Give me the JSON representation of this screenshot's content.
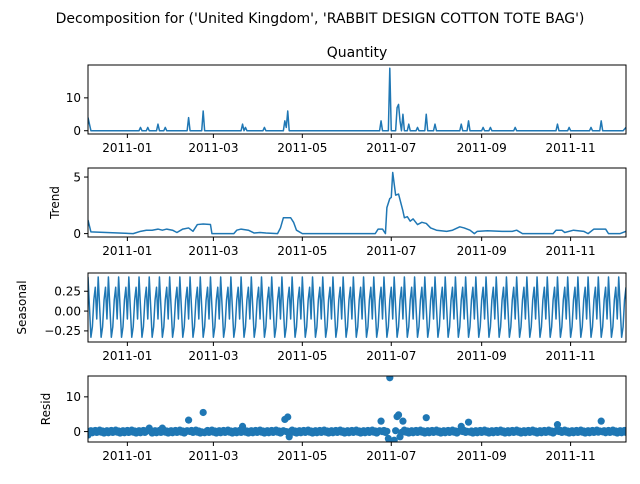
{
  "chart_data": {
    "type": "line",
    "suptitle": "Decomposition for ('United Kingdom', 'RABBIT  DESIGN  COTTON TOTE BAG')",
    "x_tick_labels": [
      "2011-01",
      "2011-03",
      "2011-05",
      "2011-07",
      "2011-09",
      "2011-11"
    ],
    "x_tick_dates": [
      "2011-01-01",
      "2011-03-01",
      "2011-05-01",
      "2011-07-01",
      "2011-09-01",
      "2011-11-01"
    ],
    "x_range": [
      "2010-12-05",
      "2011-12-09"
    ],
    "panels": [
      {
        "name": "observed",
        "title": "Quantity",
        "ylabel": "",
        "kind": "line",
        "ylim": [
          -1,
          20
        ],
        "yticks": [
          0,
          10
        ],
        "points": [
          [
            "2010-12-05",
            4
          ],
          [
            "2010-12-07",
            0
          ],
          [
            "2011-01-09",
            0
          ],
          [
            "2011-01-10",
            1
          ],
          [
            "2011-01-11",
            0
          ],
          [
            "2011-01-14",
            0
          ],
          [
            "2011-01-15",
            1
          ],
          [
            "2011-01-16",
            0
          ],
          [
            "2011-01-21",
            0
          ],
          [
            "2011-01-22",
            2
          ],
          [
            "2011-01-23",
            0
          ],
          [
            "2011-01-26",
            0
          ],
          [
            "2011-01-27",
            1
          ],
          [
            "2011-01-28",
            0
          ],
          [
            "2011-02-11",
            0
          ],
          [
            "2011-02-12",
            4
          ],
          [
            "2011-02-13",
            0
          ],
          [
            "2011-02-21",
            0
          ],
          [
            "2011-02-22",
            6
          ],
          [
            "2011-02-23",
            0
          ],
          [
            "2011-03-20",
            0
          ],
          [
            "2011-03-21",
            2
          ],
          [
            "2011-03-22",
            0
          ],
          [
            "2011-03-23",
            1
          ],
          [
            "2011-03-24",
            0
          ],
          [
            "2011-04-04",
            0
          ],
          [
            "2011-04-05",
            1
          ],
          [
            "2011-04-06",
            0
          ],
          [
            "2011-04-18",
            0
          ],
          [
            "2011-04-19",
            3
          ],
          [
            "2011-04-20",
            1
          ],
          [
            "2011-04-21",
            6
          ],
          [
            "2011-04-22",
            0
          ],
          [
            "2011-06-23",
            0
          ],
          [
            "2011-06-24",
            3
          ],
          [
            "2011-06-25",
            0
          ],
          [
            "2011-06-29",
            0
          ],
          [
            "2011-06-30",
            19
          ],
          [
            "2011-07-01",
            0
          ],
          [
            "2011-07-04",
            0
          ],
          [
            "2011-07-05",
            7
          ],
          [
            "2011-07-06",
            8
          ],
          [
            "2011-07-07",
            3
          ],
          [
            "2011-07-08",
            0
          ],
          [
            "2011-07-09",
            5
          ],
          [
            "2011-07-10",
            0
          ],
          [
            "2011-07-12",
            0
          ],
          [
            "2011-07-13",
            2
          ],
          [
            "2011-07-14",
            0
          ],
          [
            "2011-07-18",
            0
          ],
          [
            "2011-07-19",
            1
          ],
          [
            "2011-07-20",
            0
          ],
          [
            "2011-07-24",
            0
          ],
          [
            "2011-07-25",
            5
          ],
          [
            "2011-07-26",
            0
          ],
          [
            "2011-07-30",
            0
          ],
          [
            "2011-07-31",
            2
          ],
          [
            "2011-08-01",
            0
          ],
          [
            "2011-08-17",
            0
          ],
          [
            "2011-08-18",
            2
          ],
          [
            "2011-08-19",
            0
          ],
          [
            "2011-08-22",
            0
          ],
          [
            "2011-08-23",
            3
          ],
          [
            "2011-08-24",
            0
          ],
          [
            "2011-09-01",
            0
          ],
          [
            "2011-09-02",
            1
          ],
          [
            "2011-09-03",
            0
          ],
          [
            "2011-09-06",
            0
          ],
          [
            "2011-09-07",
            1
          ],
          [
            "2011-09-08",
            0
          ],
          [
            "2011-09-23",
            0
          ],
          [
            "2011-09-24",
            1
          ],
          [
            "2011-09-25",
            0
          ],
          [
            "2011-10-22",
            0
          ],
          [
            "2011-10-23",
            2
          ],
          [
            "2011-10-24",
            0
          ],
          [
            "2011-10-30",
            0
          ],
          [
            "2011-10-31",
            1
          ],
          [
            "2011-11-01",
            0
          ],
          [
            "2011-11-14",
            0
          ],
          [
            "2011-11-15",
            1
          ],
          [
            "2011-11-16",
            0
          ],
          [
            "2011-11-21",
            0
          ],
          [
            "2011-11-22",
            3
          ],
          [
            "2011-11-23",
            0
          ],
          [
            "2011-12-07",
            0
          ],
          [
            "2011-12-09",
            1
          ]
        ]
      },
      {
        "name": "trend",
        "title": "",
        "ylabel": "Trend",
        "kind": "line",
        "ylim": [
          -0.3,
          5.8
        ],
        "yticks": [
          0,
          5
        ],
        "points": [
          [
            "2010-12-05",
            1.2
          ],
          [
            "2010-12-07",
            0.15
          ],
          [
            "2011-01-05",
            0.0
          ],
          [
            "2011-01-10",
            0.2
          ],
          [
            "2011-01-14",
            0.3
          ],
          [
            "2011-01-18",
            0.3
          ],
          [
            "2011-01-22",
            0.4
          ],
          [
            "2011-01-25",
            0.3
          ],
          [
            "2011-01-28",
            0.4
          ],
          [
            "2011-02-01",
            0.3
          ],
          [
            "2011-02-04",
            0.1
          ],
          [
            "2011-02-08",
            0.4
          ],
          [
            "2011-02-12",
            0.5
          ],
          [
            "2011-02-15",
            0.2
          ],
          [
            "2011-02-18",
            0.8
          ],
          [
            "2011-02-22",
            0.85
          ],
          [
            "2011-02-27",
            0.8
          ],
          [
            "2011-02-28",
            0.0
          ],
          [
            "2011-03-15",
            0.0
          ],
          [
            "2011-03-17",
            0.3
          ],
          [
            "2011-03-20",
            0.4
          ],
          [
            "2011-03-25",
            0.3
          ],
          [
            "2011-03-29",
            0.05
          ],
          [
            "2011-04-02",
            0.1
          ],
          [
            "2011-04-06",
            0.05
          ],
          [
            "2011-04-14",
            0.0
          ],
          [
            "2011-04-16",
            0.5
          ],
          [
            "2011-04-18",
            1.4
          ],
          [
            "2011-04-23",
            1.4
          ],
          [
            "2011-04-25",
            1.0
          ],
          [
            "2011-04-27",
            0.3
          ],
          [
            "2011-05-01",
            0.0
          ],
          [
            "2011-06-20",
            0.0
          ],
          [
            "2011-06-22",
            0.4
          ],
          [
            "2011-06-25",
            0.4
          ],
          [
            "2011-06-27",
            0.0
          ],
          [
            "2011-06-28",
            2.3
          ],
          [
            "2011-06-30",
            3.1
          ],
          [
            "2011-07-01",
            3.2
          ],
          [
            "2011-07-02",
            5.4
          ],
          [
            "2011-07-04",
            3.4
          ],
          [
            "2011-07-06",
            3.5
          ],
          [
            "2011-07-08",
            2.5
          ],
          [
            "2011-07-09",
            2.0
          ],
          [
            "2011-07-10",
            1.4
          ],
          [
            "2011-07-12",
            1.5
          ],
          [
            "2011-07-14",
            1.1
          ],
          [
            "2011-07-16",
            1.3
          ],
          [
            "2011-07-19",
            0.8
          ],
          [
            "2011-07-22",
            1.0
          ],
          [
            "2011-07-25",
            0.9
          ],
          [
            "2011-07-28",
            0.5
          ],
          [
            "2011-08-01",
            0.3
          ],
          [
            "2011-08-08",
            0.2
          ],
          [
            "2011-08-12",
            0.3
          ],
          [
            "2011-08-17",
            0.6
          ],
          [
            "2011-08-20",
            0.5
          ],
          [
            "2011-08-24",
            0.3
          ],
          [
            "2011-08-27",
            0.0
          ],
          [
            "2011-08-29",
            0.2
          ],
          [
            "2011-09-05",
            0.25
          ],
          [
            "2011-09-15",
            0.2
          ],
          [
            "2011-09-22",
            0.2
          ],
          [
            "2011-09-25",
            0.3
          ],
          [
            "2011-09-29",
            0.0
          ],
          [
            "2011-10-20",
            0.0
          ],
          [
            "2011-10-22",
            0.3
          ],
          [
            "2011-10-26",
            0.3
          ],
          [
            "2011-10-28",
            0.1
          ],
          [
            "2011-11-03",
            0.3
          ],
          [
            "2011-11-10",
            0.2
          ],
          [
            "2011-11-13",
            0.0
          ],
          [
            "2011-11-17",
            0.4
          ],
          [
            "2011-11-25",
            0.4
          ],
          [
            "2011-11-27",
            0.0
          ],
          [
            "2011-12-05",
            0.0
          ],
          [
            "2011-12-09",
            0.2
          ]
        ]
      },
      {
        "name": "seasonal",
        "title": "",
        "ylabel": "Seasonal",
        "kind": "seasonal",
        "ylim": [
          -0.39,
          0.48
        ],
        "yticks": [
          -0.25,
          0.0,
          0.25
        ],
        "ytick_labels": [
          "−0.25",
          "0.00",
          "0.25"
        ],
        "period_days": 7,
        "cycle_values": [
          0.43,
          0.05,
          -0.33,
          -0.2,
          0.14,
          0.3,
          -0.1
        ]
      },
      {
        "name": "resid",
        "title": "",
        "ylabel": "Resid",
        "kind": "scatter",
        "ylim": [
          -3,
          16
        ],
        "yticks": [
          0,
          10
        ],
        "outliers": [
          [
            "2010-12-05",
            -1
          ],
          [
            "2011-01-16",
            1
          ],
          [
            "2011-01-25",
            1
          ],
          [
            "2011-02-12",
            3.3
          ],
          [
            "2011-02-22",
            5.5
          ],
          [
            "2011-03-21",
            1.5
          ],
          [
            "2011-04-19",
            3.5
          ],
          [
            "2011-04-21",
            4.2
          ],
          [
            "2011-04-22",
            -1.5
          ],
          [
            "2011-06-24",
            3
          ],
          [
            "2011-06-29",
            -2
          ],
          [
            "2011-06-30",
            15.5
          ],
          [
            "2011-07-01",
            -3
          ],
          [
            "2011-07-02",
            -3.5
          ],
          [
            "2011-07-03",
            -2.5
          ],
          [
            "2011-07-05",
            4.3
          ],
          [
            "2011-07-06",
            4.8
          ],
          [
            "2011-07-07",
            -1.5
          ],
          [
            "2011-07-09",
            3
          ],
          [
            "2011-07-25",
            4
          ],
          [
            "2011-08-18",
            1.5
          ],
          [
            "2011-08-23",
            2.7
          ],
          [
            "2011-10-23",
            2
          ],
          [
            "2011-11-22",
            3
          ]
        ]
      }
    ]
  }
}
